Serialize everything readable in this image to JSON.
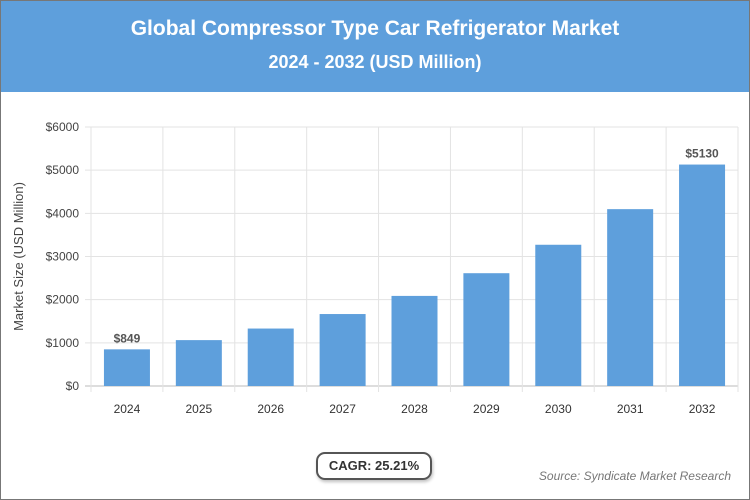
{
  "header": {
    "title": "Global Compressor Type Car Refrigerator Market",
    "subtitle": "2024 - 2032 (USD Million)"
  },
  "chart_data": {
    "type": "bar",
    "categories": [
      "2024",
      "2025",
      "2026",
      "2027",
      "2028",
      "2029",
      "2030",
      "2031",
      "2032"
    ],
    "values": [
      849,
      1063,
      1331,
      1667,
      2087,
      2613,
      3272,
      4097,
      5130
    ],
    "data_labels": {
      "0": "$849",
      "8": "$5130"
    },
    "ylabel": "Market Size (USD Million)",
    "ylim": [
      0,
      6000
    ],
    "yticks": [
      "$0",
      "$1000",
      "$2000",
      "$3000",
      "$4000",
      "$5000",
      "$6000"
    ],
    "grid": true,
    "bar_color": "#5e9fdc"
  },
  "cagr": "CAGR: 25.21%",
  "source": "Source: Syndicate Market Research"
}
